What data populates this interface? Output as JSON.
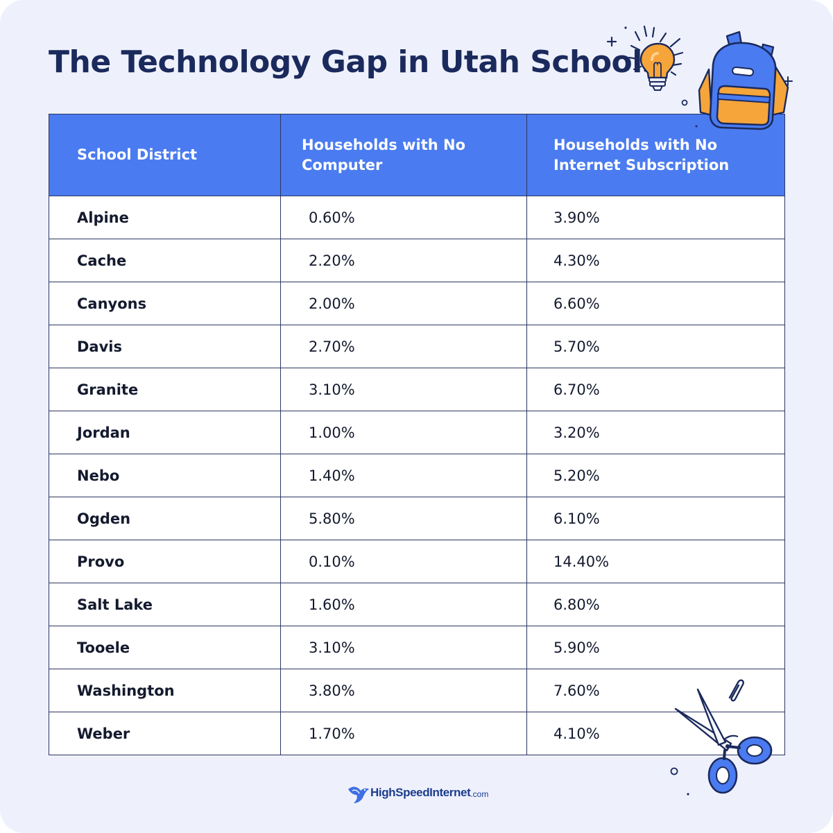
{
  "title": "The Technology Gap in Utah Schools",
  "table": {
    "headers": [
      "School District",
      "Households with No Computer",
      "Households with No Internet Subscription"
    ],
    "rows": [
      {
        "district": "Alpine",
        "no_computer": "0.60%",
        "no_internet": "3.90%"
      },
      {
        "district": "Cache",
        "no_computer": "2.20%",
        "no_internet": "4.30%"
      },
      {
        "district": "Canyons",
        "no_computer": "2.00%",
        "no_internet": "6.60%"
      },
      {
        "district": "Davis",
        "no_computer": "2.70%",
        "no_internet": "5.70%"
      },
      {
        "district": "Granite",
        "no_computer": "3.10%",
        "no_internet": "6.70%"
      },
      {
        "district": "Jordan",
        "no_computer": "1.00%",
        "no_internet": "3.20%"
      },
      {
        "district": "Nebo",
        "no_computer": "1.40%",
        "no_internet": "5.20%"
      },
      {
        "district": "Ogden",
        "no_computer": "5.80%",
        "no_internet": "6.10%"
      },
      {
        "district": "Provo",
        "no_computer": "0.10%",
        "no_internet": "14.40%"
      },
      {
        "district": "Salt Lake",
        "no_computer": "1.60%",
        "no_internet": "6.80%"
      },
      {
        "district": "Tooele",
        "no_computer": "3.10%",
        "no_internet": "5.90%"
      },
      {
        "district": "Washington",
        "no_computer": "3.80%",
        "no_internet": "7.60%"
      },
      {
        "district": "Weber",
        "no_computer": "1.70%",
        "no_internet": "4.10%"
      }
    ]
  },
  "brand": {
    "name": "HighSpeedInternet",
    "suffix": ".com"
  },
  "icons": [
    "lightbulb-icon",
    "backpack-icon",
    "scissors-icon",
    "paperclip-icon",
    "bird-logo-icon"
  ],
  "colors": {
    "background": "#eef1fc",
    "header_blue": "#4a7bf0",
    "title_navy": "#1b2a5c",
    "accent_orange": "#f6a53b"
  }
}
